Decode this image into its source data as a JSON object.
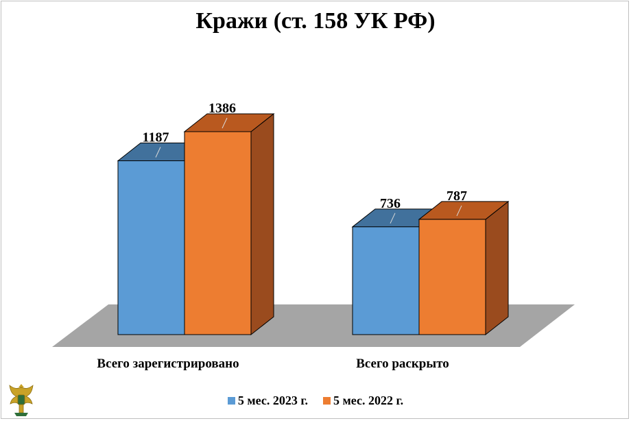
{
  "chart_data": {
    "type": "bar",
    "title": "Кражи (ст. 158 УК РФ)",
    "categories": [
      "Всего зарегистрировано",
      "Всего раскрыто"
    ],
    "series": [
      {
        "name": "5 мес. 2023 г.",
        "values": [
          1187,
          736
        ],
        "color": "#5b9bd5",
        "top_color": "#41719c"
      },
      {
        "name": "5 мес. 2022 г.",
        "values": [
          1386,
          787
        ],
        "color": "#ed7d31",
        "top_color": "#b9591f",
        "side_color": "#9a4b1e"
      }
    ],
    "floor_color": "#a5a5a5",
    "grid": false,
    "legend_position": "bottom"
  },
  "logo": {
    "icon": "double-headed-eagle-emblem-icon"
  }
}
